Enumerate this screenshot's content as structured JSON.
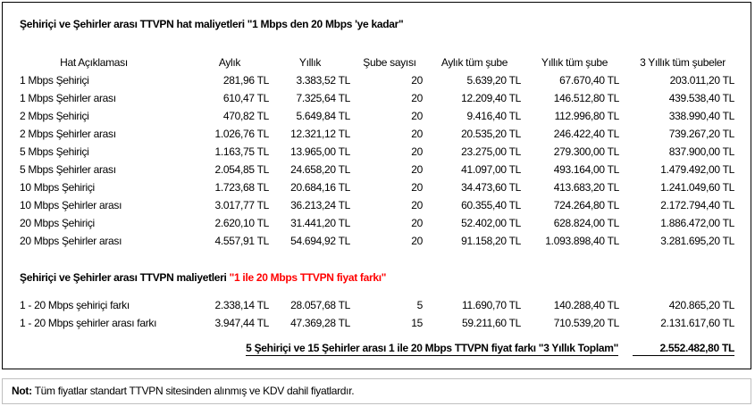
{
  "title": "Şehiriçi ve Şehirler arası TTVPN hat maliyetleri \"1 Mbps den 20 Mbps 'ye kadar\"",
  "headers": [
    "Hat Açıklaması",
    "Aylık",
    "Yıllık",
    "Şube sayısı",
    "Aylık tüm şube",
    "Yıllık tüm şube",
    "3 Yıllık tüm şubeler"
  ],
  "rows": [
    [
      "1 Mbps Şehiriçi",
      "281,96 TL",
      "3.383,52 TL",
      "20",
      "5.639,20 TL",
      "67.670,40 TL",
      "203.011,20 TL"
    ],
    [
      "1 Mbps Şehirler arası",
      "610,47 TL",
      "7.325,64 TL",
      "20",
      "12.209,40 TL",
      "146.512,80 TL",
      "439.538,40 TL"
    ],
    [
      "2 Mbps Şehiriçi",
      "470,82 TL",
      "5.649,84 TL",
      "20",
      "9.416,40 TL",
      "112.996,80 TL",
      "338.990,40 TL"
    ],
    [
      "2 Mbps Şehirler arası",
      "1.026,76 TL",
      "12.321,12 TL",
      "20",
      "20.535,20 TL",
      "246.422,40 TL",
      "739.267,20 TL"
    ],
    [
      "5 Mbps Şehiriçi",
      "1.163,75 TL",
      "13.965,00 TL",
      "20",
      "23.275,00 TL",
      "279.300,00 TL",
      "837.900,00 TL"
    ],
    [
      "5 Mbps Şehirler arası",
      "2.054,85 TL",
      "24.658,20 TL",
      "20",
      "41.097,00 TL",
      "493.164,00 TL",
      "1.479.492,00 TL"
    ],
    [
      "10 Mbps Şehiriçi",
      "1.723,68 TL",
      "20.684,16 TL",
      "20",
      "34.473,60 TL",
      "413.683,20 TL",
      "1.241.049,60 TL"
    ],
    [
      "10 Mbps Şehirler arası",
      "3.017,77 TL",
      "36.213,24 TL",
      "20",
      "60.355,40 TL",
      "724.264,80 TL",
      "2.172.794,40 TL"
    ],
    [
      "20 Mbps Şehiriçi",
      "2.620,10 TL",
      "31.441,20 TL",
      "20",
      "52.402,00 TL",
      "628.824,00 TL",
      "1.886.472,00 TL"
    ],
    [
      "20 Mbps Şehirler arası",
      "4.557,91 TL",
      "54.694,92 TL",
      "20",
      "91.158,20 TL",
      "1.093.898,40 TL",
      "3.281.695,20 TL"
    ]
  ],
  "section2": {
    "title_prefix": "Şehiriçi ve Şehirler arası TTVPN maliyetleri ",
    "title_highlight": "\"1 ile 20 Mbps TTVPN fiyat farkı\"",
    "highlight_color": "#ff0000",
    "rows": [
      [
        "1 - 20 Mbps şehiriçi farkı",
        "2.338,14 TL",
        "28.057,68 TL",
        "5",
        "11.690,70 TL",
        "140.288,40 TL",
        "420.865,20 TL"
      ],
      [
        "1 - 20 Mbps şehirler arası  farkı",
        "3.947,44 TL",
        "47.369,28 TL",
        "15",
        "59.211,60 TL",
        "710.539,20 TL",
        "2.131.617,60 TL"
      ]
    ],
    "total_label": "5 Şehiriçi ve 15 Şehirler arası 1 ile 20 Mbps TTVPN fiyat farkı \"3 Yıllık Toplam\"",
    "total_value": "2.552.482,80 TL"
  },
  "note": {
    "label": "Not:",
    "text": " Tüm fiyatlar standart TTVPN sitesinden alınmış ve KDV dahil fiyatlardır."
  }
}
